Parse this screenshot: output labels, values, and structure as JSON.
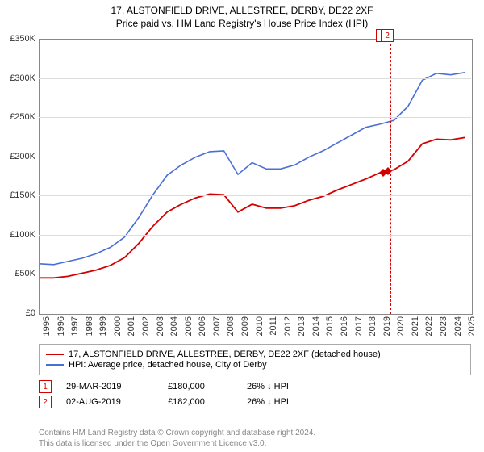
{
  "title_line1": "17, ALSTONFIELD DRIVE, ALLESTREE, DERBY, DE22 2XF",
  "title_line2": "Price paid vs. HM Land Registry's House Price Index (HPI)",
  "chart": {
    "type": "line",
    "x_years": [
      1995,
      1996,
      1997,
      1998,
      1999,
      2000,
      2001,
      2002,
      2003,
      2004,
      2005,
      2006,
      2007,
      2008,
      2009,
      2010,
      2011,
      2012,
      2013,
      2014,
      2015,
      2016,
      2017,
      2018,
      2019,
      2020,
      2021,
      2022,
      2023,
      2024,
      2025
    ],
    "xlim": [
      1995,
      2025.5
    ],
    "ylim": [
      0,
      350000
    ],
    "ytick_step": 50000,
    "yticks": [
      "£0",
      "£50K",
      "£100K",
      "£150K",
      "£200K",
      "£250K",
      "£300K",
      "£350K"
    ],
    "grid_color": "#dddddd",
    "border_color": "#888888",
    "background_color": "#ffffff",
    "label_fontsize": 11,
    "series": [
      {
        "name": "property",
        "label": "17, ALSTONFIELD DRIVE, ALLESTREE, DERBY, DE22 2XF (detached house)",
        "color": "#d40000",
        "line_width": 1.8,
        "points": [
          [
            1995,
            46000
          ],
          [
            1996,
            46000
          ],
          [
            1997,
            48000
          ],
          [
            1998,
            52000
          ],
          [
            1999,
            56000
          ],
          [
            2000,
            62000
          ],
          [
            2001,
            72000
          ],
          [
            2002,
            90000
          ],
          [
            2003,
            112000
          ],
          [
            2004,
            130000
          ],
          [
            2005,
            140000
          ],
          [
            2006,
            148000
          ],
          [
            2007,
            153000
          ],
          [
            2008,
            152000
          ],
          [
            2009,
            130000
          ],
          [
            2010,
            140000
          ],
          [
            2011,
            135000
          ],
          [
            2012,
            135000
          ],
          [
            2013,
            138000
          ],
          [
            2014,
            145000
          ],
          [
            2015,
            150000
          ],
          [
            2016,
            158000
          ],
          [
            2017,
            165000
          ],
          [
            2018,
            172000
          ],
          [
            2019,
            180000
          ],
          [
            2019.6,
            182000
          ],
          [
            2020,
            184000
          ],
          [
            2021,
            195000
          ],
          [
            2022,
            217000
          ],
          [
            2023,
            223000
          ],
          [
            2024,
            222000
          ],
          [
            2025,
            225000
          ]
        ]
      },
      {
        "name": "hpi",
        "label": "HPI: Average price, detached house, City of Derby",
        "color": "#4a6fd4",
        "line_width": 1.6,
        "points": [
          [
            1995,
            64000
          ],
          [
            1996,
            63000
          ],
          [
            1997,
            67000
          ],
          [
            1998,
            71000
          ],
          [
            1999,
            77000
          ],
          [
            2000,
            85000
          ],
          [
            2001,
            98000
          ],
          [
            2002,
            123000
          ],
          [
            2003,
            152000
          ],
          [
            2004,
            177000
          ],
          [
            2005,
            190000
          ],
          [
            2006,
            200000
          ],
          [
            2007,
            207000
          ],
          [
            2008,
            208000
          ],
          [
            2009,
            178000
          ],
          [
            2010,
            193000
          ],
          [
            2011,
            185000
          ],
          [
            2012,
            185000
          ],
          [
            2013,
            190000
          ],
          [
            2014,
            200000
          ],
          [
            2015,
            208000
          ],
          [
            2016,
            218000
          ],
          [
            2017,
            228000
          ],
          [
            2018,
            238000
          ],
          [
            2019,
            242000
          ],
          [
            2020,
            247000
          ],
          [
            2021,
            265000
          ],
          [
            2022,
            298000
          ],
          [
            2023,
            307000
          ],
          [
            2024,
            305000
          ],
          [
            2025,
            308000
          ]
        ]
      }
    ],
    "event_band": {
      "start": 2019.15,
      "end": 2019.7,
      "color": "#d40000"
    },
    "event_markers": [
      {
        "num": "1",
        "x": 2019.24,
        "y": 180000,
        "color": "#d40000"
      },
      {
        "num": "2",
        "x": 2019.59,
        "y": 182000,
        "color": "#d40000"
      }
    ]
  },
  "legend": {
    "border_color": "#aaaaaa"
  },
  "sales": [
    {
      "num": "1",
      "color": "#d40000",
      "date": "29-MAR-2019",
      "price": "£180,000",
      "diff": "26% ↓ HPI"
    },
    {
      "num": "2",
      "color": "#d40000",
      "date": "02-AUG-2019",
      "price": "£182,000",
      "diff": "26% ↓ HPI"
    }
  ],
  "footer": {
    "line1": "Contains HM Land Registry data © Crown copyright and database right 2024.",
    "line2": "This data is licensed under the Open Government Licence v3.0."
  }
}
